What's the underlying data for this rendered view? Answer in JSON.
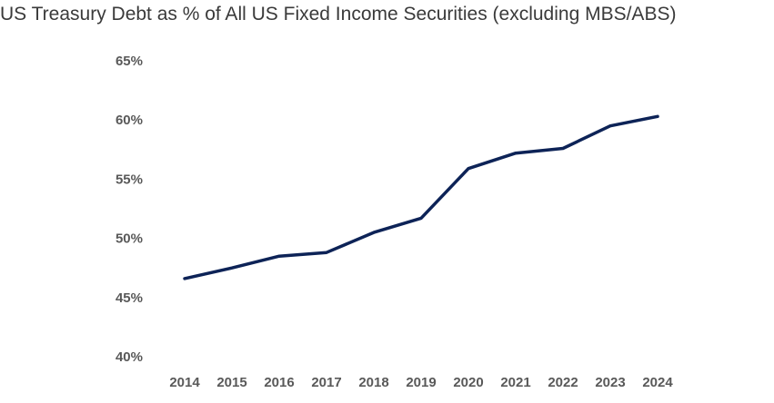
{
  "chart_data": {
    "type": "line",
    "title": "US Treasury Debt as % of All US Fixed Income Securities (excluding MBS/ABS)",
    "xlabel": "",
    "ylabel": "",
    "categories": [
      "2014",
      "2015",
      "2016",
      "2017",
      "2018",
      "2019",
      "2020",
      "2021",
      "2022",
      "2023",
      "2024"
    ],
    "series": [
      {
        "values": [
          46.6,
          47.5,
          48.5,
          48.8,
          50.5,
          51.7,
          55.9,
          57.2,
          57.6,
          59.5,
          60.3
        ]
      }
    ],
    "ylim": [
      40,
      65
    ],
    "yticks": [
      40,
      45,
      50,
      55,
      60,
      65
    ],
    "ytick_labels": [
      "40%",
      "45%",
      "50%",
      "55%",
      "60%",
      "65%"
    ],
    "grid": false,
    "legend": "none",
    "line_color": "#0d2357"
  }
}
